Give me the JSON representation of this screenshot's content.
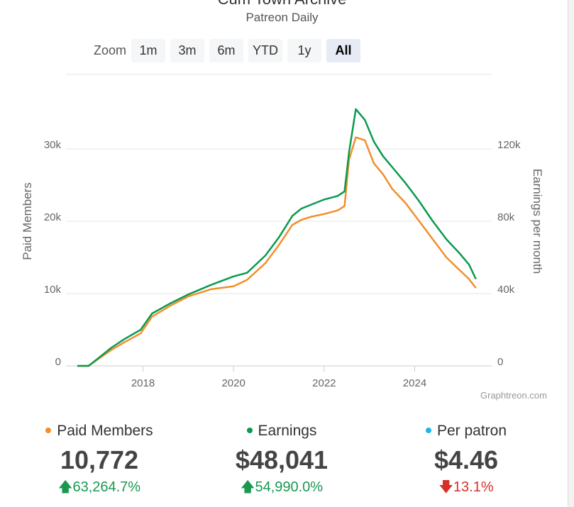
{
  "header": {
    "title": "Cum Town Archive",
    "subtitle": "Patreon Daily"
  },
  "zoom": {
    "label": "Zoom",
    "buttons": [
      "1m",
      "3m",
      "6m",
      "YTD",
      "1y",
      "All"
    ],
    "active": "All"
  },
  "credit": "Graphtreon.com",
  "chart_data": {
    "type": "line",
    "ylabel_left": "Paid Members",
    "ylabel_right": "Earnings per month",
    "x_ticks": [
      "2018",
      "2020",
      "2022",
      "2024"
    ],
    "y_left_ticks": [
      "0",
      "10k",
      "20k",
      "30k"
    ],
    "y_right_ticks": [
      "0",
      "40k",
      "80k",
      "120k"
    ],
    "x_range": [
      2016.3,
      2025.7
    ],
    "y_left_range": [
      0,
      30000
    ],
    "y_right_range": [
      0,
      120000
    ],
    "grid": true,
    "series": [
      {
        "name": "Paid Members",
        "axis": "left",
        "color": "#f28f2c",
        "x": [
          2016.55,
          2016.8,
          2017.0,
          2017.3,
          2017.6,
          2017.95,
          2018.2,
          2018.6,
          2019.0,
          2019.5,
          2020.0,
          2020.3,
          2020.7,
          2021.0,
          2021.3,
          2021.5,
          2021.7,
          2022.0,
          2022.3,
          2022.45,
          2022.55,
          2022.7,
          2022.9,
          2023.1,
          2023.3,
          2023.5,
          2023.8,
          2024.1,
          2024.4,
          2024.7,
          2025.0,
          2025.2,
          2025.35
        ],
        "values": [
          0,
          0,
          900,
          2200,
          3300,
          4500,
          6800,
          8300,
          9600,
          10600,
          11000,
          11900,
          14200,
          16700,
          19500,
          20200,
          20600,
          21000,
          21500,
          22100,
          28500,
          31600,
          31200,
          28000,
          26500,
          24500,
          22500,
          20000,
          17500,
          15000,
          13200,
          12000,
          10772
        ]
      },
      {
        "name": "Earnings",
        "axis": "right",
        "color": "#0a9a4f",
        "x": [
          2016.55,
          2016.8,
          2017.0,
          2017.3,
          2017.6,
          2017.95,
          2018.2,
          2018.6,
          2019.0,
          2019.5,
          2020.0,
          2020.3,
          2020.7,
          2021.0,
          2021.3,
          2021.5,
          2021.7,
          2022.0,
          2022.3,
          2022.45,
          2022.55,
          2022.7,
          2022.9,
          2023.1,
          2023.3,
          2023.5,
          2023.8,
          2024.1,
          2024.4,
          2024.7,
          2025.0,
          2025.2,
          2025.35
        ],
        "values": [
          0,
          0,
          4000,
          10000,
          15000,
          20000,
          29000,
          34500,
          39500,
          44800,
          49500,
          51500,
          61000,
          71000,
          83000,
          87000,
          89000,
          92000,
          94000,
          96500,
          118000,
          142000,
          136000,
          124000,
          116000,
          110000,
          101000,
          91000,
          80000,
          70000,
          62000,
          56000,
          48041
        ]
      }
    ]
  },
  "stats": [
    {
      "label": "Paid Members",
      "color": "#f28f2c",
      "value": "10,772",
      "change": "63,264.7%",
      "direction": "up"
    },
    {
      "label": "Earnings",
      "color": "#0a9a4f",
      "value": "$48,041",
      "change": "54,990.0%",
      "direction": "up"
    },
    {
      "label": "Per patron",
      "color": "#1ab7e6",
      "value": "$4.46",
      "change": "13.1%",
      "direction": "down"
    }
  ]
}
